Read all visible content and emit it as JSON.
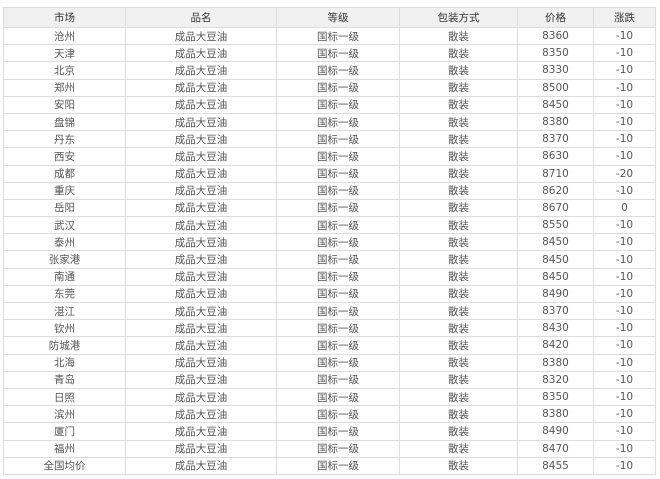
{
  "table": {
    "headers": [
      "市场",
      "品名",
      "等级",
      "包装方式",
      "价格",
      "涨跌"
    ],
    "rows": [
      [
        "沧州",
        "成品大豆油",
        "国标一级",
        "散装",
        "8360",
        "-10"
      ],
      [
        "天津",
        "成品大豆油",
        "国标一级",
        "散装",
        "8350",
        "-10"
      ],
      [
        "北京",
        "成品大豆油",
        "国标一级",
        "散装",
        "8330",
        "-10"
      ],
      [
        "郑州",
        "成品大豆油",
        "国标一级",
        "散装",
        "8500",
        "-10"
      ],
      [
        "安阳",
        "成品大豆油",
        "国标一级",
        "散装",
        "8450",
        "-10"
      ],
      [
        "盘锦",
        "成品大豆油",
        "国标一级",
        "散装",
        "8380",
        "-10"
      ],
      [
        "丹东",
        "成品大豆油",
        "国标一级",
        "散装",
        "8370",
        "-10"
      ],
      [
        "西安",
        "成品大豆油",
        "国标一级",
        "散装",
        "8630",
        "-10"
      ],
      [
        "成都",
        "成品大豆油",
        "国标一级",
        "散装",
        "8710",
        "-20"
      ],
      [
        "重庆",
        "成品大豆油",
        "国标一级",
        "散装",
        "8620",
        "-10"
      ],
      [
        "岳阳",
        "成品大豆油",
        "国标一级",
        "散装",
        "8670",
        "0"
      ],
      [
        "武汉",
        "成品大豆油",
        "国标一级",
        "散装",
        "8550",
        "-10"
      ],
      [
        "泰州",
        "成品大豆油",
        "国标一级",
        "散装",
        "8450",
        "-10"
      ],
      [
        "张家港",
        "成品大豆油",
        "国标一级",
        "散装",
        "8450",
        "-10"
      ],
      [
        "南通",
        "成品大豆油",
        "国标一级",
        "散装",
        "8450",
        "-10"
      ],
      [
        "东莞",
        "成品大豆油",
        "国标一级",
        "散装",
        "8490",
        "-10"
      ],
      [
        "湛江",
        "成品大豆油",
        "国标一级",
        "散装",
        "8370",
        "-10"
      ],
      [
        "钦州",
        "成品大豆油",
        "国标一级",
        "散装",
        "8430",
        "-10"
      ],
      [
        "防城港",
        "成品大豆油",
        "国标一级",
        "散装",
        "8420",
        "-10"
      ],
      [
        "北海",
        "成品大豆油",
        "国标一级",
        "散装",
        "8380",
        "-10"
      ],
      [
        "青岛",
        "成品大豆油",
        "国标一级",
        "散装",
        "8320",
        "-10"
      ],
      [
        "日照",
        "成品大豆油",
        "国标一级",
        "散装",
        "8350",
        "-10"
      ],
      [
        "滨州",
        "成品大豆油",
        "国标一级",
        "散装",
        "8380",
        "-10"
      ],
      [
        "厦门",
        "成品大豆油",
        "国标一级",
        "散装",
        "8490",
        "-10"
      ],
      [
        "福州",
        "成品大豆油",
        "国标一级",
        "散装",
        "8470",
        "-10"
      ],
      [
        "全国均价",
        "成品大豆油",
        "国标一级",
        "散装",
        "8455",
        "-10"
      ]
    ]
  }
}
